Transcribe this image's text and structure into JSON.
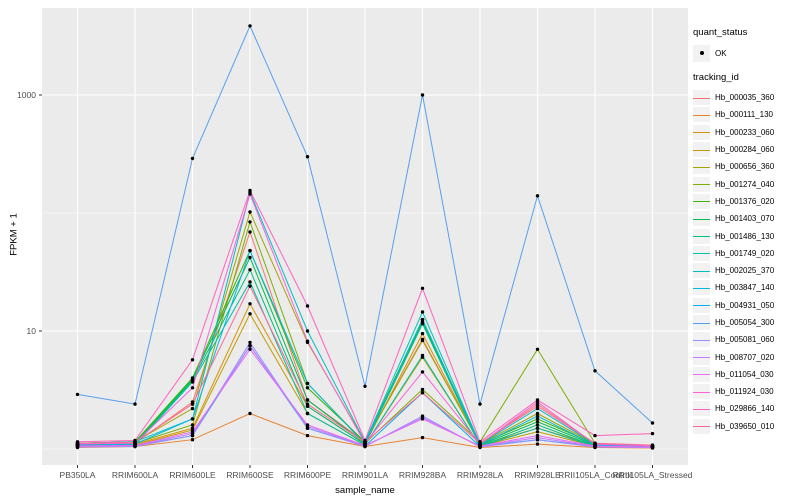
{
  "figure": {
    "background": "#FFFFFF",
    "panel_background": "#EBEBEB",
    "grid_color": "#FFFFFF",
    "axis_text_color": "#4D4D4D",
    "point_color": "#000000"
  },
  "axes": {
    "x_title": "sample_name",
    "y_title": "FPKM + 1",
    "y_tick_labels": [
      "1000",
      "10"
    ]
  },
  "legend": {
    "quant_status_title": "quant_status",
    "quant_status_items": [
      {
        "label": "OK",
        "shape": "black-point"
      }
    ],
    "tracking_id_title": "tracking_id"
  },
  "chart_data": {
    "type": "line",
    "title": "",
    "xlabel": "sample_name",
    "ylabel": "FPKM + 1",
    "y_scale": "log10",
    "y_ticks": [
      1000,
      10
    ],
    "y_minor_gridlines": [
      100,
      1
    ],
    "ylim": [
      0.73,
      5500
    ],
    "grid": true,
    "legend_position": "right",
    "marker": "black dot on every data point (quant_status = OK)",
    "categories": [
      "PB350LA",
      "RRIM600LA",
      "RRIM600LE",
      "RRIM600SE",
      "RRIM600PE",
      "RRIM901LA",
      "RRIM928BA",
      "RRIM928LA",
      "RRIM928LE",
      "RRII105LA_Control",
      "RRII105LA_Stressed"
    ],
    "series": [
      {
        "name": "Hb_000035_360",
        "color": "#F8766D",
        "values": [
          1.1,
          1.12,
          2.5,
          69,
          2.6,
          1.15,
          8.5,
          1.1,
          2.4,
          1.1,
          1.05
        ]
      },
      {
        "name": "Hb_000111_130",
        "color": "#EA8331",
        "values": [
          1.03,
          1.05,
          1.2,
          2.0,
          1.3,
          1.05,
          1.25,
          1.03,
          1.1,
          1.03,
          1.02
        ]
      },
      {
        "name": "Hb_000233_060",
        "color": "#D89000",
        "values": [
          1.08,
          1.1,
          1.5,
          17,
          2.3,
          1.1,
          9.5,
          1.08,
          1.5,
          1.08,
          1.05
        ]
      },
      {
        "name": "Hb_000284_060",
        "color": "#C09B00",
        "values": [
          1.06,
          1.08,
          1.45,
          14,
          2.0,
          1.08,
          6.0,
          1.06,
          1.4,
          1.06,
          1.04
        ]
      },
      {
        "name": "Hb_000656_360",
        "color": "#A3A500",
        "values": [
          1.12,
          1.15,
          2.2,
          102,
          8.0,
          1.15,
          8.3,
          1.1,
          2.0,
          1.1,
          1.06
        ]
      },
      {
        "name": "Hb_001274_040",
        "color": "#7CAE00",
        "values": [
          1.1,
          1.12,
          1.6,
          84,
          3.6,
          1.12,
          3.2,
          1.15,
          7.0,
          1.12,
          1.05
        ]
      },
      {
        "name": "Hb_001376_020",
        "color": "#39B600",
        "values": [
          1.12,
          1.15,
          4.0,
          48,
          3.3,
          1.15,
          12.5,
          1.1,
          1.8,
          1.1,
          1.06
        ]
      },
      {
        "name": "Hb_001403_070",
        "color": "#00BB4E",
        "values": [
          1.1,
          1.12,
          3.9,
          42,
          2.6,
          1.12,
          12.0,
          1.08,
          1.7,
          1.08,
          1.05
        ]
      },
      {
        "name": "Hb_001486_130",
        "color": "#00BF7D",
        "values": [
          1.08,
          1.1,
          3.8,
          33,
          2.3,
          1.1,
          11.5,
          1.06,
          1.6,
          1.06,
          1.04
        ]
      },
      {
        "name": "Hb_001749_020",
        "color": "#00C1A3",
        "values": [
          1.06,
          1.08,
          3.7,
          26,
          2.0,
          1.08,
          6.2,
          1.05,
          1.5,
          1.05,
          1.03
        ]
      },
      {
        "name": "Hb_002025_370",
        "color": "#00BFC4",
        "values": [
          1.12,
          1.15,
          1.8,
          150,
          10.0,
          1.15,
          14.5,
          1.1,
          2.2,
          1.1,
          1.06
        ]
      },
      {
        "name": "Hb_003847_140",
        "color": "#00BAE0",
        "values": [
          1.08,
          1.1,
          1.8,
          48,
          3.6,
          1.1,
          12.5,
          1.08,
          1.9,
          1.08,
          1.05
        ]
      },
      {
        "name": "Hb_004931_050",
        "color": "#00B0F6",
        "values": [
          1.05,
          1.06,
          1.3,
          7.5,
          1.5,
          1.06,
          3.0,
          1.05,
          1.2,
          1.05,
          1.03
        ]
      },
      {
        "name": "Hb_005054_300",
        "color": "#55A0F0",
        "values": [
          2.9,
          2.4,
          290,
          3850,
          300,
          3.4,
          1000,
          2.4,
          140,
          4.6,
          1.66
        ]
      },
      {
        "name": "Hb_005081_060",
        "color": "#9590FF",
        "values": [
          1.04,
          1.05,
          1.3,
          8.0,
          1.5,
          1.05,
          1.9,
          1.04,
          1.2,
          1.04,
          1.03
        ]
      },
      {
        "name": "Hb_008707_020",
        "color": "#C77CFF",
        "values": [
          1.05,
          1.06,
          1.35,
          7.5,
          1.55,
          1.06,
          1.85,
          1.05,
          1.25,
          1.05,
          1.03
        ]
      },
      {
        "name": "Hb_011054_030",
        "color": "#E76BF3",
        "values": [
          1.06,
          1.07,
          1.4,
          7.0,
          1.6,
          1.07,
          1.8,
          1.06,
          1.3,
          1.06,
          1.04
        ]
      },
      {
        "name": "Hb_011924_030",
        "color": "#FA62DB",
        "values": [
          1.1,
          1.12,
          3.3,
          145,
          8.2,
          1.12,
          4.5,
          1.1,
          2.5,
          1.1,
          1.06
        ]
      },
      {
        "name": "Hb_029866_140",
        "color": "#FF62BC",
        "values": [
          1.15,
          1.18,
          5.7,
          155,
          16.3,
          1.18,
          23,
          1.15,
          2.6,
          1.3,
          1.35
        ]
      },
      {
        "name": "Hb_039650_010",
        "color": "#FF6A98",
        "values": [
          1.12,
          1.14,
          2.4,
          24,
          2.4,
          1.14,
          3.0,
          1.12,
          2.3,
          1.12,
          1.08
        ]
      }
    ]
  }
}
